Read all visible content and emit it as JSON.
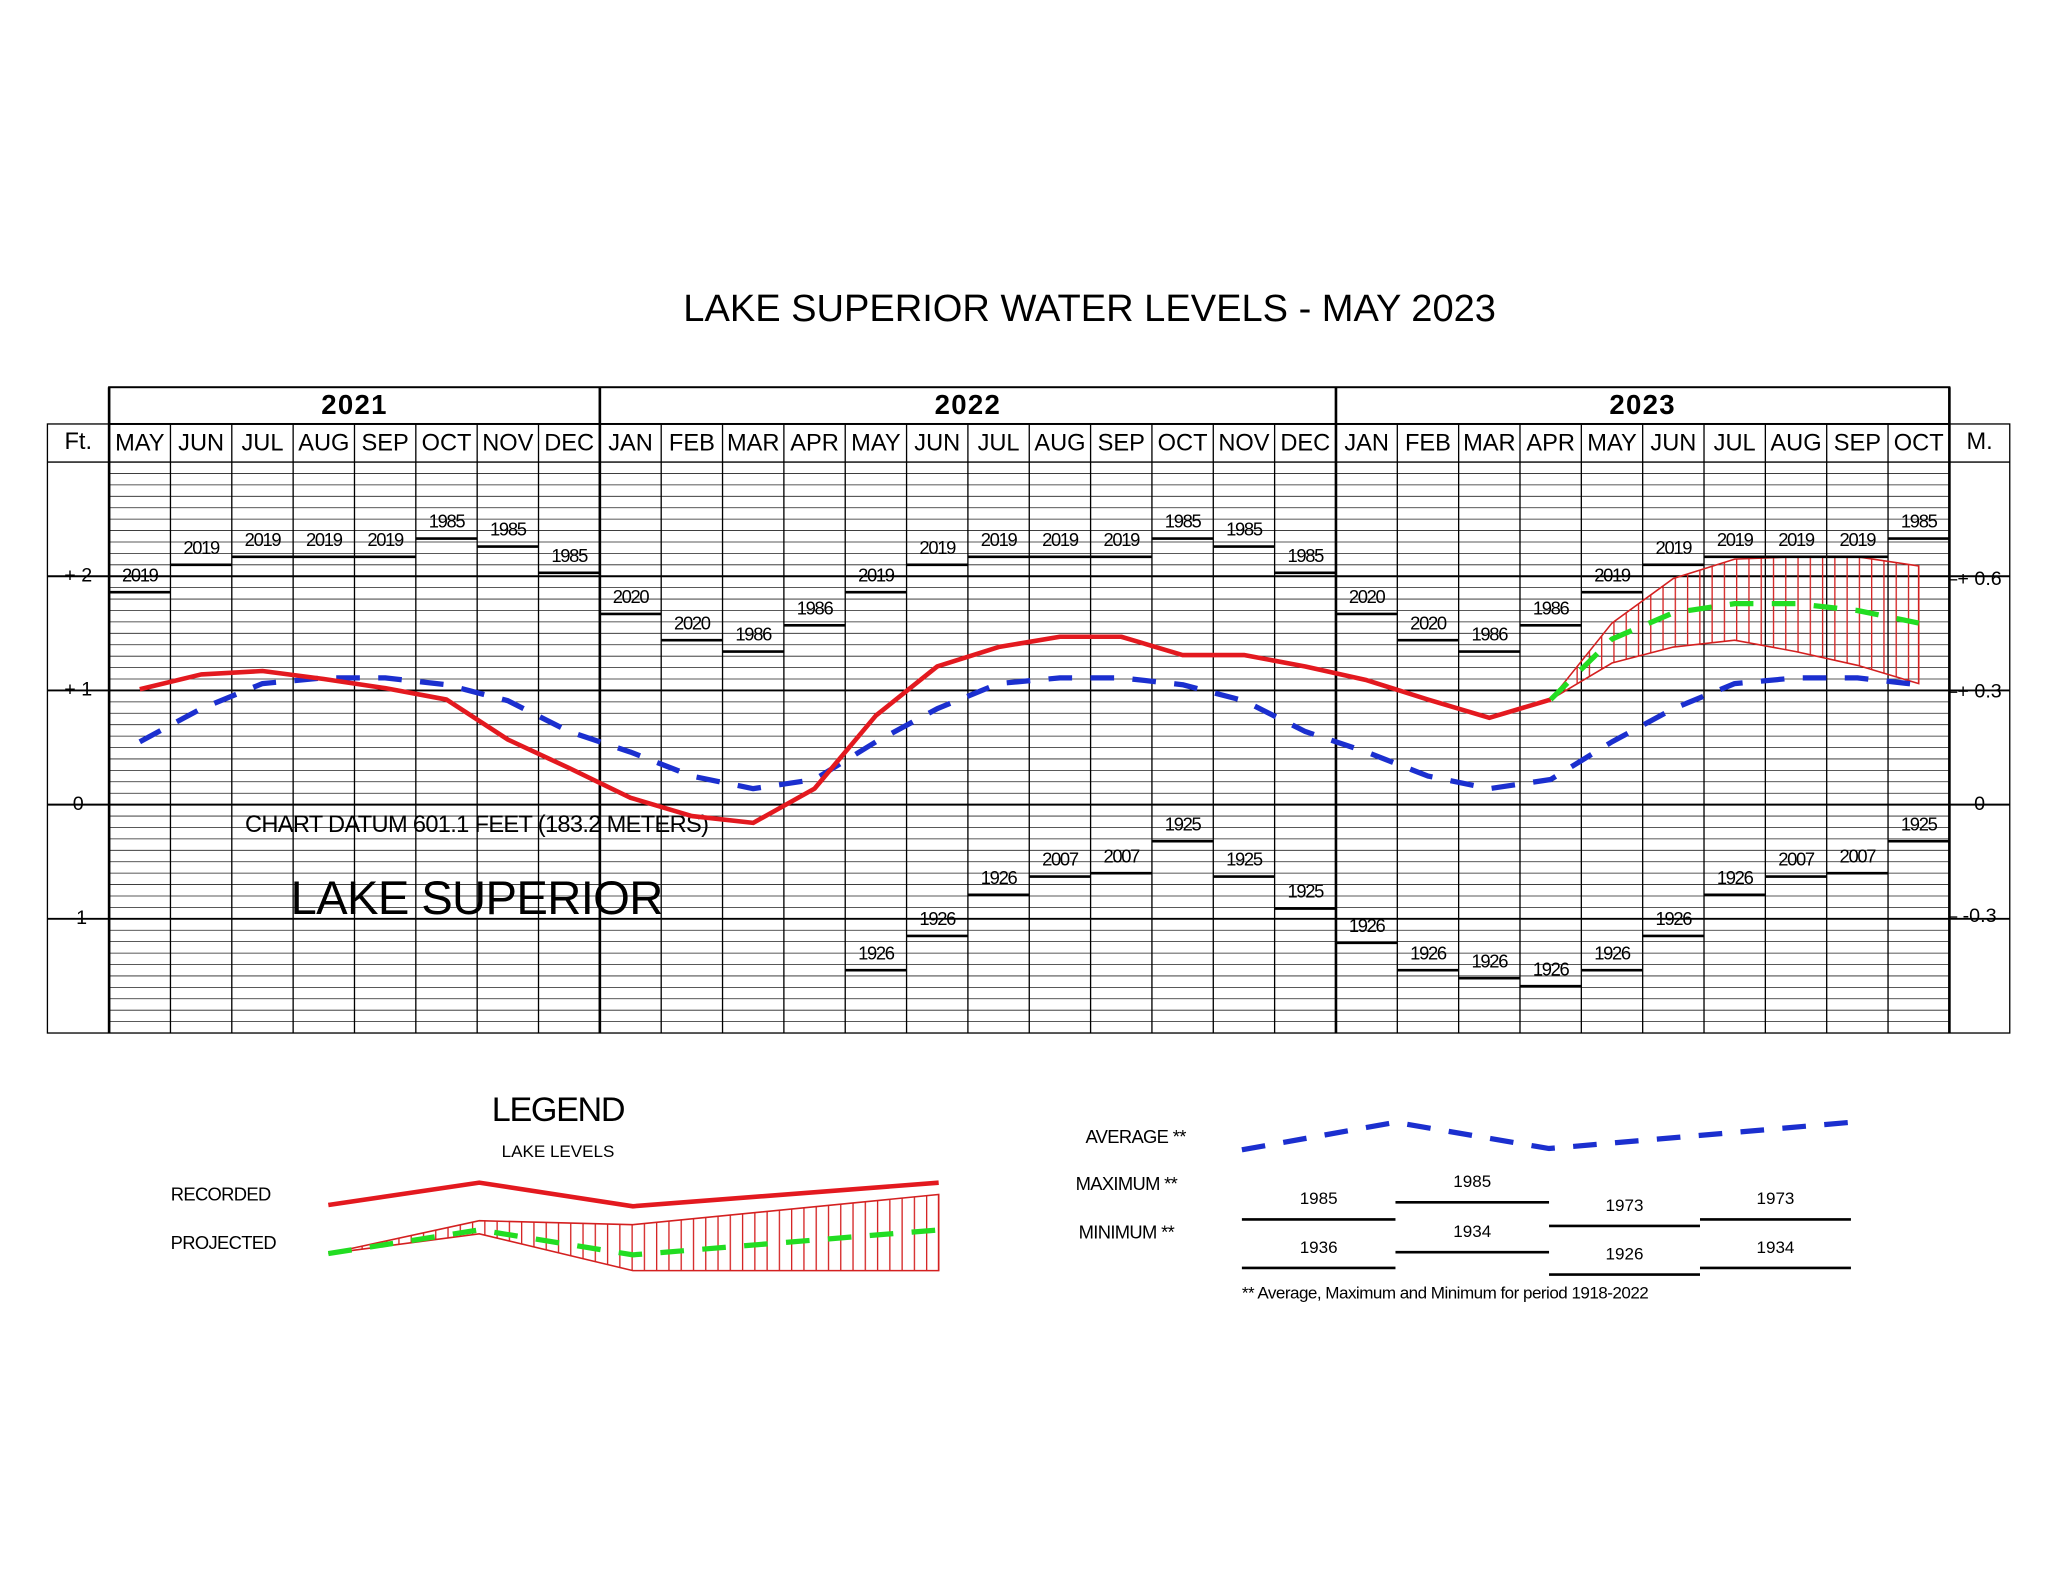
{
  "chart_data": {
    "type": "line",
    "title": "LAKE SUPERIOR WATER LEVELS - MAY 2023",
    "year_groups": [
      {
        "label": "2021",
        "categories": [
          "MAY",
          "JUN",
          "JUL",
          "AUG",
          "SEP",
          "OCT",
          "NOV",
          "DEC"
        ]
      },
      {
        "label": "2022",
        "categories": [
          "JAN",
          "FEB",
          "MAR",
          "APR",
          "MAY",
          "JUN",
          "JUL",
          "AUG",
          "SEP",
          "OCT",
          "NOV",
          "DEC"
        ]
      },
      {
        "label": "2023",
        "categories": [
          "JAN",
          "FEB",
          "MAR",
          "APR",
          "MAY",
          "JUN",
          "JUL",
          "AUG",
          "SEP",
          "OCT"
        ]
      }
    ],
    "y_label": "Ft.",
    "y2_label": "M.",
    "ylim": [
      -2,
      3
    ],
    "yticks": [
      -1,
      0,
      {
        "value": 1,
        "label": "+ 1"
      },
      {
        "value": 2,
        "label": "+ 2"
      }
    ],
    "y2lim": [
      -0.6096,
      0.9144
    ],
    "y2ticks": [
      -0.3,
      0,
      {
        "value": 0.3,
        "label": "+ 0.3"
      },
      {
        "value": 0.6,
        "label": "+ 0.6"
      }
    ],
    "grid": true,
    "minor_grid": 0.1,
    "annotations": [
      "CHART DATUM  601.1 FEET (183.2 METERS)",
      "LAKE SUPERIOR"
    ],
    "series": [
      {
        "name": "RECORDED",
        "color": "#e3191f",
        "style": "solid",
        "values": [
          1.01,
          1.14,
          1.17,
          1.1,
          1.02,
          0.92,
          0.57,
          0.32,
          0.06,
          -0.1,
          -0.16,
          0.14,
          0.78,
          1.21,
          1.38,
          1.47,
          1.47,
          1.31,
          1.31,
          1.21,
          1.09,
          0.92,
          0.76,
          0.92,
          null,
          null,
          null,
          null,
          null,
          null
        ]
      },
      {
        "name": "PROJECTED",
        "color": "#22dd22",
        "band_color": "#d42020",
        "style": "dashed",
        "values": [
          null,
          null,
          null,
          null,
          null,
          null,
          null,
          null,
          null,
          null,
          null,
          null,
          null,
          null,
          null,
          null,
          null,
          null,
          null,
          null,
          null,
          null,
          null,
          0.92,
          1.45,
          1.68,
          1.76,
          1.76,
          1.7,
          1.59
        ],
        "upper": [
          null,
          null,
          null,
          null,
          null,
          null,
          null,
          null,
          null,
          null,
          null,
          null,
          null,
          null,
          null,
          null,
          null,
          null,
          null,
          null,
          null,
          null,
          null,
          0.92,
          1.59,
          1.98,
          2.15,
          2.17,
          2.17,
          2.09
        ],
        "lower": [
          null,
          null,
          null,
          null,
          null,
          null,
          null,
          null,
          null,
          null,
          null,
          null,
          null,
          null,
          null,
          null,
          null,
          null,
          null,
          null,
          null,
          null,
          null,
          0.92,
          1.24,
          1.38,
          1.44,
          1.34,
          1.22,
          1.06
        ]
      },
      {
        "name": "AVERAGE **",
        "color": "#1b2fcf",
        "style": "dashed",
        "values": [
          0.55,
          0.84,
          1.06,
          1.11,
          1.11,
          1.05,
          0.91,
          0.64,
          0.46,
          0.25,
          0.14,
          0.22,
          0.55,
          0.84,
          1.06,
          1.11,
          1.11,
          1.05,
          0.91,
          0.64,
          0.46,
          0.25,
          0.14,
          0.22,
          0.55,
          0.84,
          1.06,
          1.11,
          1.11,
          1.05
        ]
      },
      {
        "name": "MAXIMUM **",
        "color": "#000000",
        "style": "record",
        "values": [
          1.86,
          2.1,
          2.17,
          2.17,
          2.17,
          2.33,
          2.26,
          2.03,
          1.67,
          1.44,
          1.34,
          1.57,
          1.86,
          2.1,
          2.17,
          2.17,
          2.17,
          2.33,
          2.26,
          2.03,
          1.67,
          1.44,
          1.34,
          1.57,
          1.86,
          2.1,
          2.17,
          2.17,
          2.17,
          2.33
        ],
        "years": [
          "2019",
          "2019",
          "2019",
          "2019",
          "2019",
          "1985",
          "1985",
          "1985",
          "2020",
          "2020",
          "1986",
          "1986",
          "2019",
          "2019",
          "2019",
          "2019",
          "2019",
          "1985",
          "1985",
          "1985",
          "2020",
          "2020",
          "1986",
          "1986",
          "2019",
          "2019",
          "2019",
          "2019",
          "2019",
          "1985"
        ]
      },
      {
        "name": "MINIMUM **",
        "color": "#000000",
        "style": "record",
        "values": [
          null,
          null,
          null,
          null,
          null,
          null,
          null,
          null,
          null,
          null,
          null,
          null,
          -1.45,
          -1.15,
          -0.79,
          -0.63,
          -0.6,
          -0.32,
          -0.63,
          -0.91,
          -1.21,
          -1.45,
          -1.52,
          -1.59,
          -1.45,
          -1.15,
          -0.79,
          -0.63,
          -0.6,
          -0.32
        ],
        "years": [
          null,
          null,
          null,
          null,
          null,
          null,
          null,
          null,
          null,
          null,
          null,
          null,
          "1926",
          "1926",
          "1926",
          "2007",
          "2007",
          "1925",
          "1925",
          "1925",
          "1926",
          "1926",
          "1926",
          "1926",
          "1926",
          "1926",
          "1926",
          "2007",
          "2007",
          "1925"
        ]
      }
    ],
    "legend": {
      "title": "LEGEND",
      "subtitle": "LAKE LEVELS",
      "max_years": [
        "1985",
        "1985",
        "1973",
        "1973"
      ],
      "min_years": [
        "1936",
        "1934",
        "1926",
        "1934"
      ],
      "note": "** Average, Maximum and Minimum for period 1918-2022"
    }
  }
}
